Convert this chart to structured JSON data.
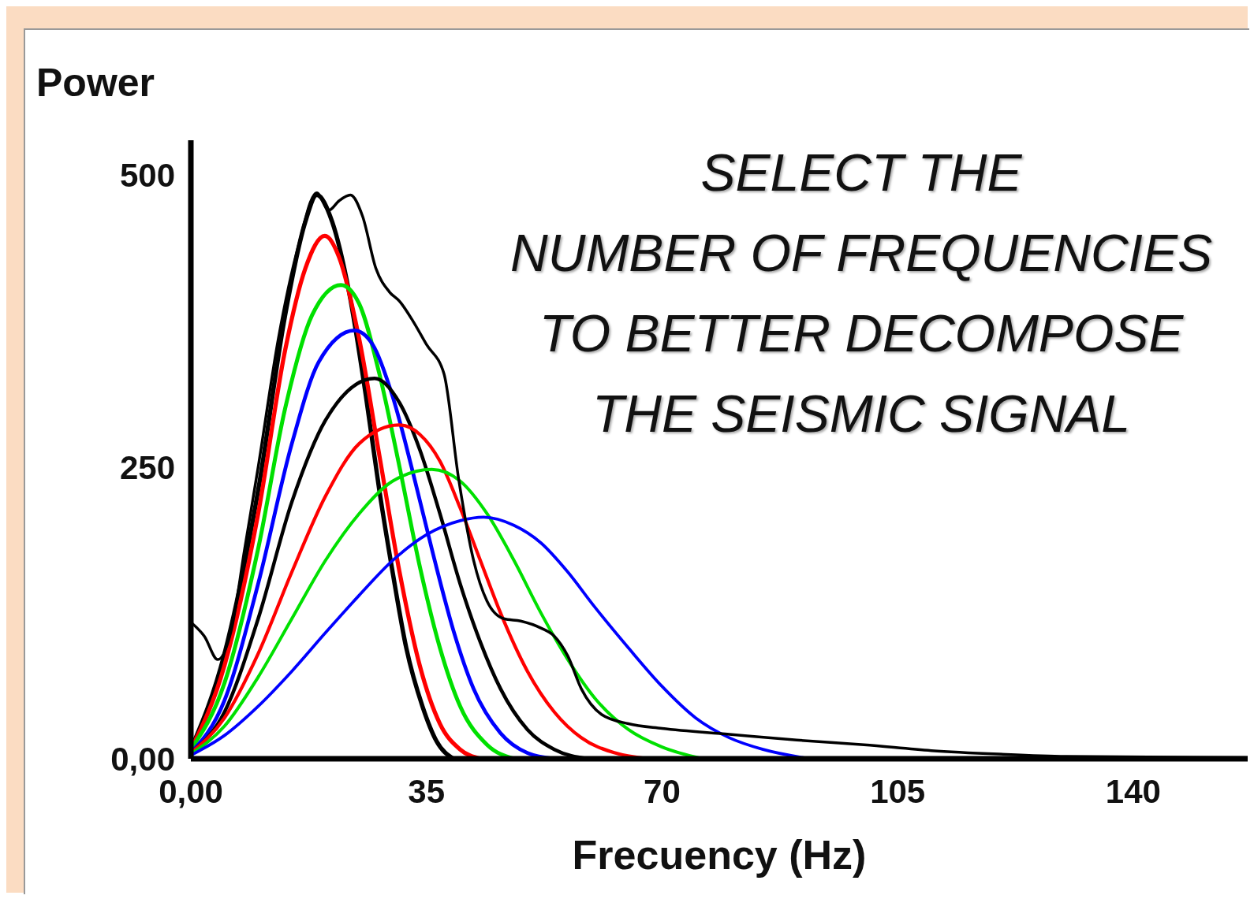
{
  "chart_data": {
    "type": "line",
    "xlabel": "Frecuency (Hz)",
    "ylabel": "Power",
    "annotations": [
      "SELECT THE",
      "NUMBER OF FREQUENCIES",
      "TO BETTER DECOMPOSE",
      "THE SEISMIC SIGNAL"
    ],
    "xlim": [
      0,
      157
    ],
    "xticks": [
      {
        "value": 0,
        "label": "0,00"
      },
      35,
      70,
      105,
      140
    ],
    "ylim": [
      0,
      530
    ],
    "yticks": [
      {
        "value": 0,
        "label": "0,00"
      },
      250,
      500
    ],
    "grid": false,
    "legend": false,
    "marker": "none",
    "line_style": "solid",
    "series": [
      {
        "color": "#000000",
        "x": [
          0,
          5,
          10,
          14,
          17,
          18.7,
          21,
          23.5,
          26,
          28,
          30,
          32,
          34.4,
          36.5,
          39
        ],
        "values": [
          8,
          90,
          230,
          380,
          460,
          483,
          460,
          400,
          311,
          230,
          159,
          95,
          45,
          15,
          0
        ]
      },
      {
        "color": "#ff0000",
        "x": [
          0,
          5,
          10,
          14,
          17,
          19.9,
          22,
          25,
          28,
          31,
          34,
          37,
          40,
          43
        ],
        "values": [
          8,
          80,
          210,
          350,
          420,
          448,
          430,
          360,
          260,
          160,
          80,
          30,
          8,
          0
        ]
      },
      {
        "color": "#00e000",
        "x": [
          0,
          5,
          10,
          14,
          18,
          22.3,
          25,
          28,
          31,
          34,
          37,
          40,
          44,
          48
        ],
        "values": [
          8,
          65,
          180,
          300,
          380,
          406,
          390,
          330,
          250,
          165,
          95,
          45,
          12,
          0
        ]
      },
      {
        "color": "#0000ff",
        "x": [
          0,
          5,
          10,
          15,
          19,
          24.3,
          27,
          30,
          33,
          36,
          39,
          42,
          46,
          50,
          54
        ],
        "values": [
          5,
          50,
          150,
          270,
          340,
          367,
          355,
          310,
          245,
          175,
          110,
          60,
          22,
          5,
          0
        ]
      },
      {
        "color": "#000000",
        "x": [
          0,
          5,
          10,
          15,
          20,
          27.3,
          31,
          34,
          37,
          40,
          43,
          46,
          50,
          54,
          59
        ],
        "values": [
          5,
          40,
          120,
          220,
          290,
          326,
          305,
          265,
          210,
          150,
          100,
          60,
          25,
          8,
          0
        ]
      },
      {
        "color": "#ff0000",
        "x": [
          0,
          5,
          10,
          15,
          20,
          25,
          30.9,
          34,
          37,
          40,
          43,
          46,
          50,
          54,
          58,
          63,
          68
        ],
        "values": [
          5,
          35,
          90,
          160,
          225,
          270,
          286,
          278,
          255,
          215,
          170,
          125,
          75,
          40,
          18,
          5,
          0
        ]
      },
      {
        "color": "#00e000",
        "x": [
          0,
          5,
          10,
          15,
          20,
          25,
          30,
          35.8,
          40,
          44,
          48,
          52,
          56,
          60,
          65,
          70,
          76
        ],
        "values": [
          4,
          28,
          70,
          120,
          170,
          210,
          238,
          248,
          238,
          210,
          170,
          125,
          85,
          52,
          25,
          10,
          0
        ]
      },
      {
        "color": "#0000ff",
        "x": [
          0,
          5,
          10,
          15,
          20,
          25,
          30,
          35,
          40,
          43.5,
          48,
          52,
          56,
          60,
          65,
          70,
          75,
          80,
          85,
          92
        ],
        "values": [
          3,
          20,
          45,
          75,
          108,
          140,
          170,
          192,
          204,
          207,
          200,
          185,
          160,
          130,
          95,
          62,
          35,
          18,
          8,
          0
        ]
      },
      {
        "color": "#000000",
        "x": [
          0,
          2,
          4,
          6,
          8,
          10,
          13,
          16,
          18.7,
          20.5,
          22,
          23.7,
          25.5,
          27.5,
          29.5,
          31,
          33,
          35,
          37.6,
          39.8,
          42,
          44,
          46.5,
          49,
          52,
          54,
          56,
          58,
          61,
          65,
          70,
          80,
          90,
          100,
          110,
          120,
          130,
          157
        ],
        "values": [
          117,
          105,
          85,
          110,
          180,
          250,
          360,
          440,
          485,
          470,
          478,
          483,
          465,
          420,
          400,
          392,
          375,
          355,
          330,
          239,
          170,
          135,
          120,
          118,
          112,
          105,
          88,
          60,
          38,
          30,
          26,
          21,
          16,
          12,
          7,
          4,
          2,
          1
        ]
      }
    ]
  }
}
